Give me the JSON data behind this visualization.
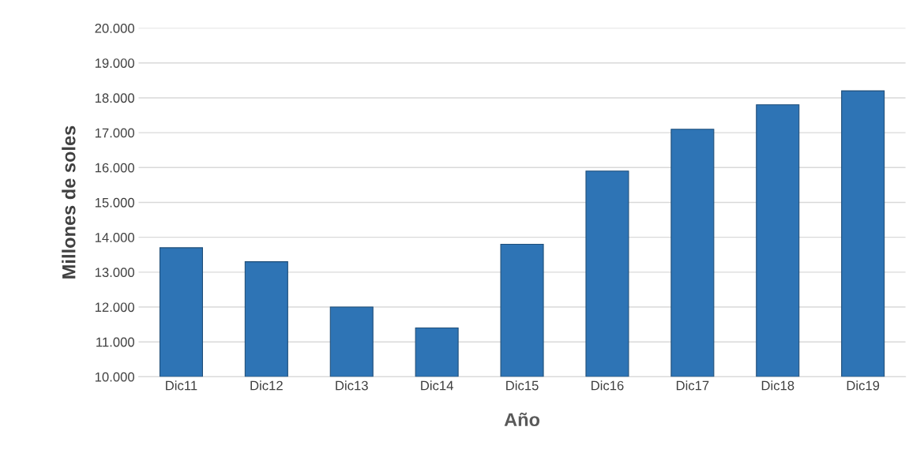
{
  "chart_data": {
    "type": "bar",
    "xlabel": "Año",
    "ylabel": "Millones de soles",
    "categories": [
      "Dic11",
      "Dic12",
      "Dic13",
      "Dic14",
      "Dic15",
      "Dic16",
      "Dic17",
      "Dic18",
      "Dic19"
    ],
    "values": [
      13700,
      13300,
      12000,
      11400,
      13800,
      15900,
      17100,
      17800,
      18200
    ],
    "color": "#2e74b5",
    "ylim": [
      10000,
      20000
    ],
    "yticks": [
      {
        "value": 10000,
        "label": "10.000"
      },
      {
        "value": 11000,
        "label": "11.000"
      },
      {
        "value": 12000,
        "label": "12.000"
      },
      {
        "value": 13000,
        "label": "13.000"
      },
      {
        "value": 14000,
        "label": "14.000"
      },
      {
        "value": 15000,
        "label": "15.000"
      },
      {
        "value": 16000,
        "label": "16.000"
      },
      {
        "value": 17000,
        "label": "17.000"
      },
      {
        "value": 18000,
        "label": "18.000"
      },
      {
        "value": 19000,
        "label": "19.000"
      },
      {
        "value": 20000,
        "label": "20.000"
      }
    ],
    "grid": "y"
  }
}
